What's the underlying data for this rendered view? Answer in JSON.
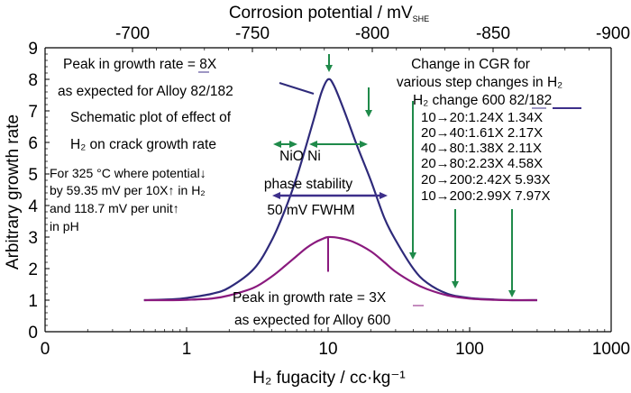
{
  "chart_data": {
    "type": "line",
    "title": "",
    "xlabel": "H₂ fugacity / cc·kg⁻¹",
    "ylabel": "Arbitrary growth rate",
    "x_scale": "log",
    "xlim": [
      0.1,
      1000
    ],
    "ylim": [
      0,
      9
    ],
    "x_tick_labels": [
      "0",
      "1",
      "10",
      "100",
      "1000"
    ],
    "x_tick_values": [
      0.1,
      1,
      10,
      100,
      1000
    ],
    "y_tick_labels": [
      "0",
      "1",
      "2",
      "3",
      "4",
      "5",
      "6",
      "7",
      "8",
      "9"
    ],
    "y_tick_values": [
      0,
      1,
      2,
      3,
      4,
      5,
      6,
      7,
      8,
      9
    ],
    "top_axis": {
      "label": "Corrosion potential / mV",
      "label_subscript": "SHE",
      "tick_labels": [
        "-700",
        "-750",
        "-800",
        "-850",
        "-900"
      ],
      "tick_values": [
        -700,
        -750,
        -800,
        -850,
        -900
      ]
    },
    "grid": false,
    "series": [
      {
        "name": "Alloy 82/182",
        "color": "#2e2a7a",
        "x": [
          0.5,
          0.8,
          1,
          1.5,
          2,
          3,
          4,
          5,
          6,
          7,
          8,
          9,
          10,
          11,
          13,
          16,
          20,
          25,
          30,
          40,
          50,
          70,
          100,
          150,
          200,
          300
        ],
        "y": [
          1.0,
          1.03,
          1.07,
          1.2,
          1.4,
          2.0,
          2.9,
          3.9,
          4.9,
          5.9,
          6.8,
          7.6,
          8.0,
          7.8,
          7.0,
          5.9,
          4.8,
          3.6,
          2.9,
          2.0,
          1.55,
          1.2,
          1.07,
          1.02,
          1.0,
          1.0
        ]
      },
      {
        "name": "Alloy 600",
        "color": "#8a1a7e",
        "x": [
          0.5,
          0.8,
          1,
          1.5,
          2,
          3,
          4,
          5,
          6,
          7,
          8,
          9,
          10,
          12,
          15,
          20,
          25,
          30,
          40,
          50,
          70,
          100,
          150,
          200,
          300
        ],
        "y": [
          1.0,
          1.0,
          1.01,
          1.05,
          1.15,
          1.4,
          1.75,
          2.1,
          2.4,
          2.65,
          2.82,
          2.93,
          3.0,
          2.97,
          2.85,
          2.55,
          2.2,
          1.9,
          1.55,
          1.35,
          1.15,
          1.05,
          1.01,
          1.0,
          1.0
        ]
      }
    ],
    "annotations": {
      "peak_8x_line1": "Peak in growth rate = 8X",
      "peak_8x_line2": "as expected for Alloy 82/182",
      "schematic_line1": "Schematic plot of effect of",
      "schematic_line2": "H₂ on crack growth rate",
      "note_line1": "For 325 °C where potential↓",
      "note_line2": "by 59.35 mV per 10X↑ in H₂",
      "note_line3": "and 118.7 mV per unit↑",
      "note_line4": "in pH",
      "nio_ni": "NiO Ni",
      "phase_stability": "phase stability",
      "fwhm": "50 mV FWHM",
      "peak_3x_line1": "Peak in growth rate = 3X",
      "peak_3x_line2": "as expected for Alloy 600",
      "cgr_title1": "Change in CGR for",
      "cgr_title2": "various step changes in H₂",
      "cgr_header": "H₂ change 600 82/182",
      "cgr_rows": [
        "10→20:1.24X 1.34X",
        "20→40:1.61X 2.17X",
        "40→80:1.38X 2.11X",
        "20→80:2.23X 4.58X",
        "20→200:2.42X 5.93X",
        "10→200:2.99X 7.97X"
      ]
    },
    "cgr_table": {
      "columns": [
        "H₂ change",
        "600",
        "82/182"
      ],
      "rows": [
        [
          "10→20",
          "1.24X",
          "1.34X"
        ],
        [
          "20→40",
          "1.61X",
          "2.17X"
        ],
        [
          "40→80",
          "1.38X",
          "2.11X"
        ],
        [
          "20→80",
          "2.23X",
          "4.58X"
        ],
        [
          "20→200",
          "2.42X",
          "5.93X"
        ],
        [
          "10→200",
          "2.99X",
          "7.97X"
        ]
      ]
    },
    "arrow_color": "#1f8a4a",
    "fwhm_arrow_color": "#3d2f8a"
  }
}
